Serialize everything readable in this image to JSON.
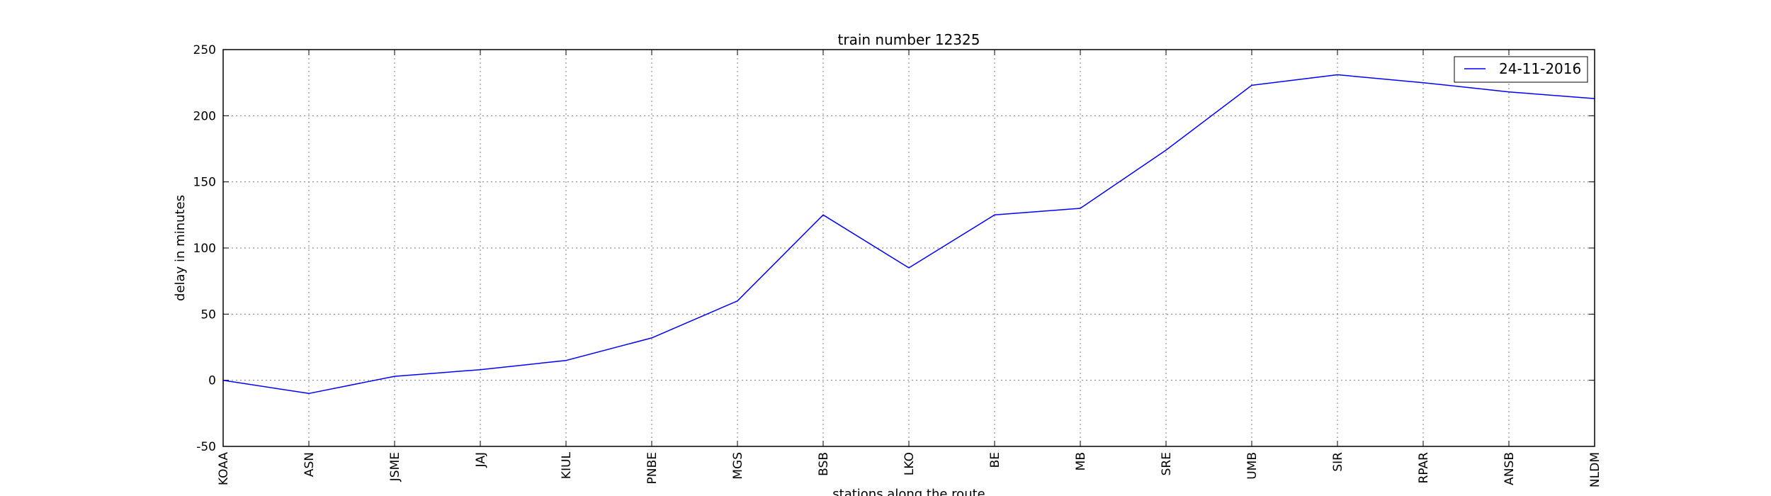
{
  "chart_data": {
    "type": "line",
    "title": "train number 12325",
    "xlabel": "stations along the route",
    "ylabel": "delay in minutes",
    "categories": [
      "KOAA",
      "ASN",
      "JSME",
      "JAJ",
      "KIUL",
      "PNBE",
      "MGS",
      "BSB",
      "LKO",
      "BE",
      "MB",
      "SRE",
      "UMB",
      "SIR",
      "RPAR",
      "ANSB",
      "NLDM"
    ],
    "series": [
      {
        "name": "24-11-2016",
        "color": "#0000ff",
        "values": [
          0,
          -10,
          3,
          8,
          15,
          32,
          60,
          125,
          85,
          125,
          130,
          174,
          223,
          231,
          225,
          218,
          213
        ]
      }
    ],
    "ylim": [
      -50,
      250
    ],
    "yticks": [
      -50,
      0,
      50,
      100,
      150,
      200,
      250
    ],
    "grid": true,
    "legend": "top-right"
  }
}
